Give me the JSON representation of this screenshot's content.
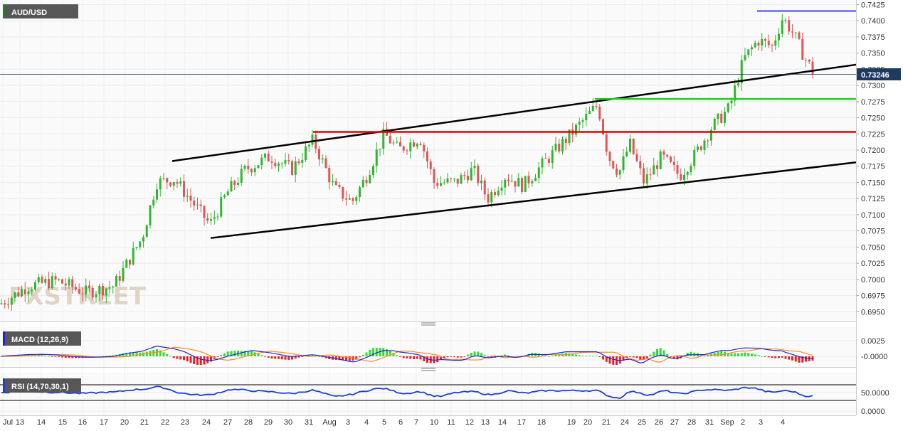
{
  "symbol": "AUD/USD",
  "watermark": "FXSTREET",
  "current_price_label": "0.73246",
  "macd_label": "MACD (12,26,9)",
  "rsi_label": "RSI (14,70,30,1)",
  "colors": {
    "up_candle": "#2eb82e",
    "down_candle": "#e05555",
    "trend_lines": "#000000",
    "resistance_line": "#e60000",
    "support_line": "#22cc22",
    "top_line": "#6666ee",
    "macd_line": "#2222dd",
    "signal_line": "#ff8c1a",
    "rsi_line": "#1c3fd6",
    "price_tag_bg": "#1f3a5f"
  },
  "chart_data": [
    {
      "type": "candlestick",
      "title": "AUD/USD",
      "y_ticks": [
        "0.7425",
        "0.7400",
        "0.7375",
        "0.7350",
        "0.7325",
        "0.7300",
        "0.7275",
        "0.7250",
        "0.7225",
        "0.7200",
        "0.7175",
        "0.7150",
        "0.7125",
        "0.7100",
        "0.7075",
        "0.7050",
        "0.7025",
        "0.7000",
        "0.6975",
        "0.6950"
      ],
      "ylim": [
        0.6935,
        0.7432
      ],
      "x_ticks": [
        "Jul",
        "13",
        "14",
        "15",
        "16",
        "17",
        "20",
        "21",
        "22",
        "23",
        "24",
        "27",
        "28",
        "29",
        "30",
        "31",
        "Aug",
        "3",
        "4",
        "5",
        "6",
        "7",
        "10",
        "11",
        "12",
        "13",
        "14",
        "17",
        "18",
        "19",
        "20",
        "21",
        "24",
        "25",
        "26",
        "27",
        "28",
        "31",
        "Sep",
        "2",
        "3",
        "4"
      ],
      "current_price": 0.73246,
      "levels": [
        {
          "kind": "resistance",
          "value": 0.7228
        },
        {
          "kind": "support",
          "value": 0.7279
        },
        {
          "kind": "top",
          "value": 0.7415
        }
      ],
      "channel": {
        "upper": [
          {
            "date": "Jul 22",
            "y": 0.7183
          },
          {
            "date": "Sep 4",
            "y": 0.7332
          }
        ],
        "lower": [
          {
            "date": "Jul 24",
            "y": 0.7064
          },
          {
            "date": "Sep 4",
            "y": 0.7181
          }
        ]
      },
      "close_path": [
        {
          "x": 0,
          "y": 0.6962
        },
        {
          "x": 40,
          "y": 0.699
        },
        {
          "x": 80,
          "y": 0.6998
        },
        {
          "x": 120,
          "y": 0.698
        },
        {
          "x": 160,
          "y": 0.699
        },
        {
          "x": 200,
          "y": 0.7065
        },
        {
          "x": 220,
          "y": 0.715
        },
        {
          "x": 245,
          "y": 0.7155
        },
        {
          "x": 270,
          "y": 0.712
        },
        {
          "x": 295,
          "y": 0.7085
        },
        {
          "x": 320,
          "y": 0.7135
        },
        {
          "x": 345,
          "y": 0.717
        },
        {
          "x": 380,
          "y": 0.719
        },
        {
          "x": 410,
          "y": 0.717
        },
        {
          "x": 440,
          "y": 0.7215
        },
        {
          "x": 470,
          "y": 0.714
        },
        {
          "x": 495,
          "y": 0.712
        },
        {
          "x": 515,
          "y": 0.716
        },
        {
          "x": 540,
          "y": 0.7225
        },
        {
          "x": 560,
          "y": 0.72
        },
        {
          "x": 590,
          "y": 0.722
        },
        {
          "x": 610,
          "y": 0.715
        },
        {
          "x": 640,
          "y": 0.715
        },
        {
          "x": 665,
          "y": 0.717
        },
        {
          "x": 685,
          "y": 0.7125
        },
        {
          "x": 710,
          "y": 0.716
        },
        {
          "x": 735,
          "y": 0.7145
        },
        {
          "x": 760,
          "y": 0.7175
        },
        {
          "x": 790,
          "y": 0.721
        },
        {
          "x": 815,
          "y": 0.724
        },
        {
          "x": 840,
          "y": 0.727
        },
        {
          "x": 855,
          "y": 0.719
        },
        {
          "x": 870,
          "y": 0.7165
        },
        {
          "x": 885,
          "y": 0.721
        },
        {
          "x": 905,
          "y": 0.715
        },
        {
          "x": 930,
          "y": 0.719
        },
        {
          "x": 955,
          "y": 0.716
        },
        {
          "x": 975,
          "y": 0.719
        },
        {
          "x": 1000,
          "y": 0.7235
        },
        {
          "x": 1025,
          "y": 0.7265
        },
        {
          "x": 1045,
          "y": 0.734
        },
        {
          "x": 1065,
          "y": 0.737
        },
        {
          "x": 1085,
          "y": 0.736
        },
        {
          "x": 1100,
          "y": 0.7405
        },
        {
          "x": 1115,
          "y": 0.738
        },
        {
          "x": 1130,
          "y": 0.7345
        },
        {
          "x": 1143,
          "y": 0.732
        }
      ]
    },
    {
      "type": "line",
      "title": "MACD (12,26,9)",
      "y_ticks": [
        "0.0025",
        "-0.0000"
      ]
    },
    {
      "type": "line",
      "title": "RSI (14,70,30,1)",
      "y_ticks": [
        "50.0000",
        "0.0000"
      ]
    }
  ]
}
